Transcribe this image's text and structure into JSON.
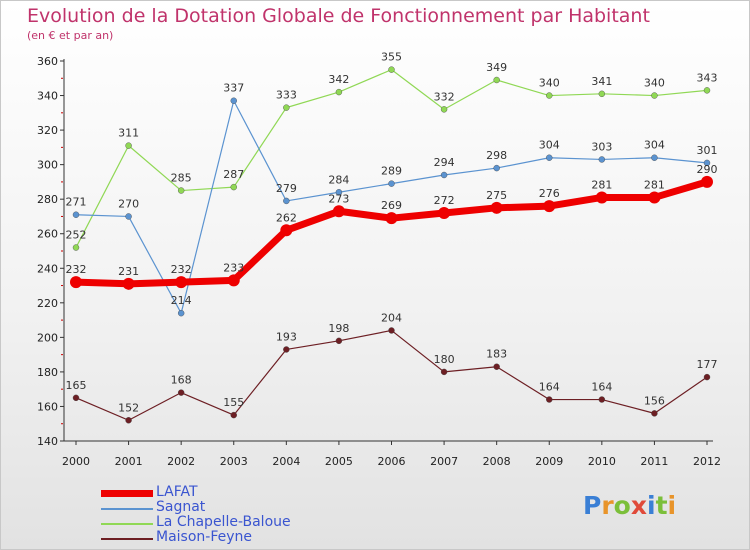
{
  "title": "Evolution de la Dotation Globale de Fonctionnement par Habitant",
  "subtitle": "(en € et par an)",
  "logo": {
    "letters": [
      "P",
      "r",
      "o",
      "x",
      "i",
      "t",
      "i"
    ],
    "colors": [
      "#3a7fd5",
      "#e8942a",
      "#7bbf3a",
      "#e04a3a",
      "#3a7fd5",
      "#7bbf3a",
      "#e8942a"
    ]
  },
  "chart_data": {
    "type": "line",
    "title": "Evolution de la Dotation Globale de Fonctionnement par Habitant",
    "x": [
      "2000",
      "2001",
      "2002",
      "2003",
      "2004",
      "2005",
      "2006",
      "2007",
      "2008",
      "2009",
      "2010",
      "2011",
      "2012"
    ],
    "ylim": [
      140,
      360
    ],
    "yticks": [
      140,
      160,
      180,
      200,
      220,
      240,
      260,
      280,
      300,
      320,
      340,
      360
    ],
    "grid": false,
    "legend_position": "bottom-left",
    "series": [
      {
        "name": "LAFAT",
        "color": "#ee0000",
        "values": [
          232,
          231,
          232,
          233,
          262,
          273,
          269,
          272,
          275,
          276,
          281,
          281,
          290
        ]
      },
      {
        "name": "Sagnat",
        "color": "#5b93d0",
        "values": [
          271,
          270,
          214,
          337,
          279,
          284,
          289,
          294,
          298,
          304,
          303,
          304,
          301
        ]
      },
      {
        "name": "La Chapelle-Baloue",
        "color": "#90d855",
        "values": [
          252,
          311,
          285,
          287,
          333,
          342,
          355,
          332,
          349,
          340,
          341,
          340,
          343
        ]
      },
      {
        "name": "Maison-Feyne",
        "color": "#6d1f24",
        "values": [
          165,
          152,
          168,
          155,
          193,
          198,
          204,
          180,
          183,
          164,
          164,
          156,
          177
        ]
      }
    ]
  }
}
